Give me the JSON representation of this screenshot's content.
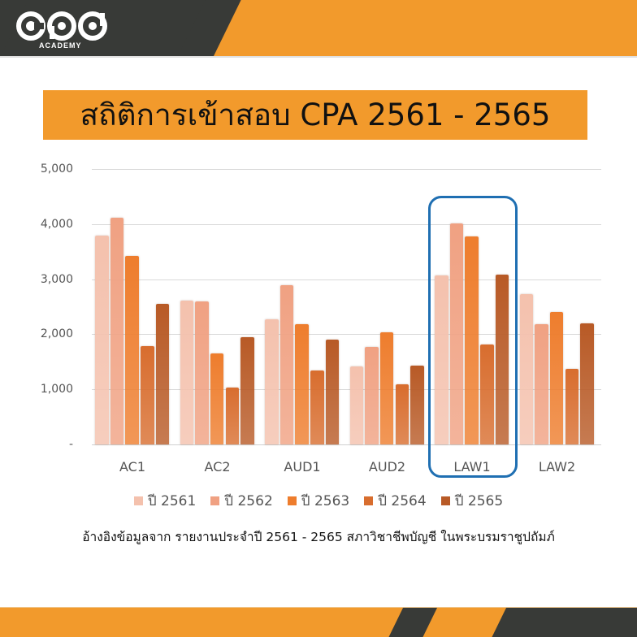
{
  "brand": {
    "logo_text": "cpd",
    "logo_subtext": "ACADEMY"
  },
  "title": "สถิติการเข้าสอบ CPA 2561 - 2565",
  "highlight": {
    "category": "LAW1",
    "color": "#1f6fb2"
  },
  "footnote": "อ้างอิงข้อมูลจาก รายงานประจำปี 2561 - 2565 สภาวิชาชีพบัญชี ในพระบรมราชูปถัมภ์",
  "colors": {
    "banner_orange": "#f29a2c",
    "banner_dark": "#383a37"
  },
  "chart_data": {
    "type": "bar",
    "title": "สถิติการเข้าสอบ CPA 2561 - 2565",
    "xlabel": "",
    "ylabel": "",
    "ylim": [
      0,
      5000
    ],
    "y_ticks": [
      "-",
      "1,000",
      "2,000",
      "3,000",
      "4,000",
      "5,000"
    ],
    "grid": true,
    "legend_position": "bottom",
    "categories": [
      "AC1",
      "AC2",
      "AUD1",
      "AUD2",
      "LAW1",
      "LAW2"
    ],
    "series": [
      {
        "name": "ปี 2561",
        "color": "#f4c1ad",
        "values": [
          3790,
          2610,
          2270,
          1410,
          3070,
          2730
        ]
      },
      {
        "name": "ปี 2562",
        "color": "#f0a182",
        "values": [
          4120,
          2600,
          2890,
          1770,
          4010,
          2180
        ]
      },
      {
        "name": "ปี 2563",
        "color": "#ee7d2d",
        "values": [
          3420,
          1650,
          2180,
          2040,
          3780,
          2400
        ]
      },
      {
        "name": "ปี 2564",
        "color": "#d86d2e",
        "values": [
          1780,
          1030,
          1340,
          1090,
          1810,
          1370
        ]
      },
      {
        "name": "ปี 2565",
        "color": "#b85a26",
        "values": [
          2550,
          1940,
          1900,
          1430,
          3080,
          2200
        ]
      }
    ]
  }
}
